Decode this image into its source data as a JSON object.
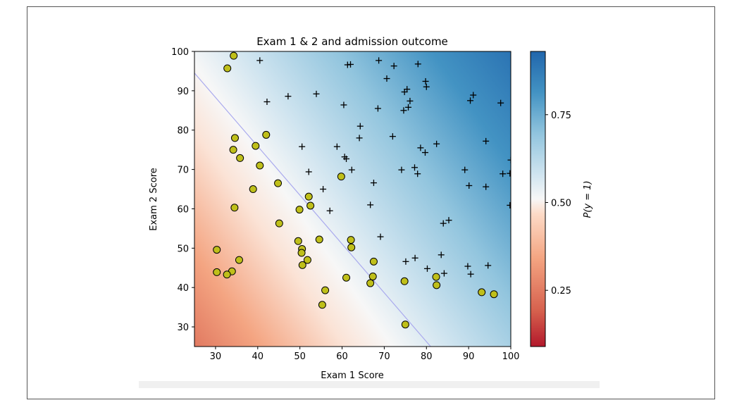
{
  "chart_data": {
    "type": "scatter",
    "title": "Exam 1 & 2 and admission outcome",
    "xlabel": "Exam 1 Score",
    "ylabel": "Exam 2 Score",
    "xlim": [
      25,
      100
    ],
    "ylim": [
      25,
      100
    ],
    "xticks": [
      30,
      40,
      50,
      60,
      70,
      80,
      90,
      100
    ],
    "yticks": [
      30,
      40,
      50,
      60,
      70,
      80,
      90,
      100
    ],
    "grid": false,
    "background": {
      "type": "probability_gradient",
      "colormap": "RdBu",
      "decision_boundary": [
        [
          25,
          94.5
        ],
        [
          81,
          25
        ]
      ]
    },
    "colorbar": {
      "label": "P(y = 1)",
      "range": [
        0.09,
        0.93
      ],
      "ticks": [
        0.25,
        0.5,
        0.75
      ]
    },
    "colors": {
      "low": "#b2182b",
      "mid": "#f7f7f7",
      "high": "#2166ac",
      "boundary": "#aaaaee",
      "not_admitted_fill": "#bfbf1a",
      "admitted_marker": "#000000"
    },
    "series": [
      {
        "marker": "circle",
        "points": [
          [
            34.6,
            78.0
          ],
          [
            30.3,
            43.9
          ],
          [
            35.8,
            72.9
          ],
          [
            45.1,
            56.3
          ],
          [
            39.5,
            76.0
          ],
          [
            40.5,
            71.0
          ],
          [
            33.9,
            44.1
          ],
          [
            35.6,
            47.0
          ],
          [
            50.6,
            45.7
          ],
          [
            50.5,
            49.8
          ],
          [
            50.4,
            48.8
          ],
          [
            30.3,
            49.6
          ],
          [
            34.5,
            60.3
          ],
          [
            32.7,
            43.3
          ],
          [
            51.8,
            47.0
          ],
          [
            38.9,
            65.0
          ],
          [
            44.8,
            66.5
          ],
          [
            52.1,
            63.1
          ],
          [
            52.5,
            60.8
          ],
          [
            55.3,
            35.6
          ],
          [
            49.6,
            51.8
          ],
          [
            56.0,
            39.3
          ],
          [
            32.8,
            95.7
          ],
          [
            34.3,
            98.9
          ],
          [
            54.6,
            52.2
          ],
          [
            59.8,
            68.2
          ],
          [
            61.0,
            42.5
          ],
          [
            62.1,
            52.1
          ],
          [
            62.2,
            50.2
          ],
          [
            66.7,
            41.1
          ],
          [
            67.5,
            46.6
          ],
          [
            67.3,
            42.8
          ],
          [
            74.8,
            41.6
          ],
          [
            75.0,
            30.6
          ],
          [
            82.3,
            42.7
          ],
          [
            82.4,
            40.6
          ],
          [
            93.1,
            38.8
          ],
          [
            96.0,
            38.3
          ],
          [
            49.9,
            59.8
          ],
          [
            34.2,
            75.0
          ],
          [
            42.0,
            78.8
          ]
        ]
      },
      {
        "marker": "plus",
        "points": [
          [
            40.5,
            97.7
          ],
          [
            42.2,
            87.2
          ],
          [
            47.2,
            88.6
          ],
          [
            53.9,
            89.2
          ],
          [
            60.4,
            86.4
          ],
          [
            61.3,
            96.6
          ],
          [
            62.0,
            96.7
          ],
          [
            68.7,
            97.7
          ],
          [
            70.6,
            93.1
          ],
          [
            72.3,
            96.3
          ],
          [
            78.0,
            96.8
          ],
          [
            79.8,
            92.4
          ],
          [
            80.0,
            91.0
          ],
          [
            75.4,
            90.4
          ],
          [
            74.8,
            89.7
          ],
          [
            76.1,
            87.4
          ],
          [
            75.7,
            85.8
          ],
          [
            74.6,
            85.0
          ],
          [
            68.5,
            85.5
          ],
          [
            64.3,
            81.0
          ],
          [
            64.1,
            78.0
          ],
          [
            72.0,
            78.4
          ],
          [
            82.4,
            76.5
          ],
          [
            78.6,
            75.5
          ],
          [
            79.7,
            74.3
          ],
          [
            50.5,
            75.8
          ],
          [
            58.8,
            75.8
          ],
          [
            60.6,
            73.2
          ],
          [
            61.0,
            72.7
          ],
          [
            52.1,
            69.4
          ],
          [
            62.3,
            69.9
          ],
          [
            74.1,
            69.9
          ],
          [
            77.2,
            70.5
          ],
          [
            77.9,
            68.9
          ],
          [
            89.1,
            69.9
          ],
          [
            90.1,
            65.9
          ],
          [
            94.1,
            65.6
          ],
          [
            98.1,
            68.9
          ],
          [
            99.8,
            69.0
          ],
          [
            97.6,
            86.9
          ],
          [
            90.4,
            87.5
          ],
          [
            91.1,
            88.9
          ],
          [
            94.1,
            77.2
          ],
          [
            100.0,
            72.4
          ],
          [
            99.8,
            60.9
          ],
          [
            67.5,
            66.6
          ],
          [
            66.7,
            61.0
          ],
          [
            55.5,
            65.0
          ],
          [
            57.1,
            59.5
          ],
          [
            69.1,
            52.9
          ],
          [
            84.0,
            56.3
          ],
          [
            85.3,
            57.1
          ],
          [
            83.5,
            48.3
          ],
          [
            75.1,
            46.6
          ],
          [
            77.3,
            47.5
          ],
          [
            80.2,
            44.8
          ],
          [
            84.2,
            43.6
          ],
          [
            89.8,
            45.4
          ],
          [
            90.5,
            43.4
          ],
          [
            94.6,
            45.6
          ]
        ]
      }
    ]
  }
}
